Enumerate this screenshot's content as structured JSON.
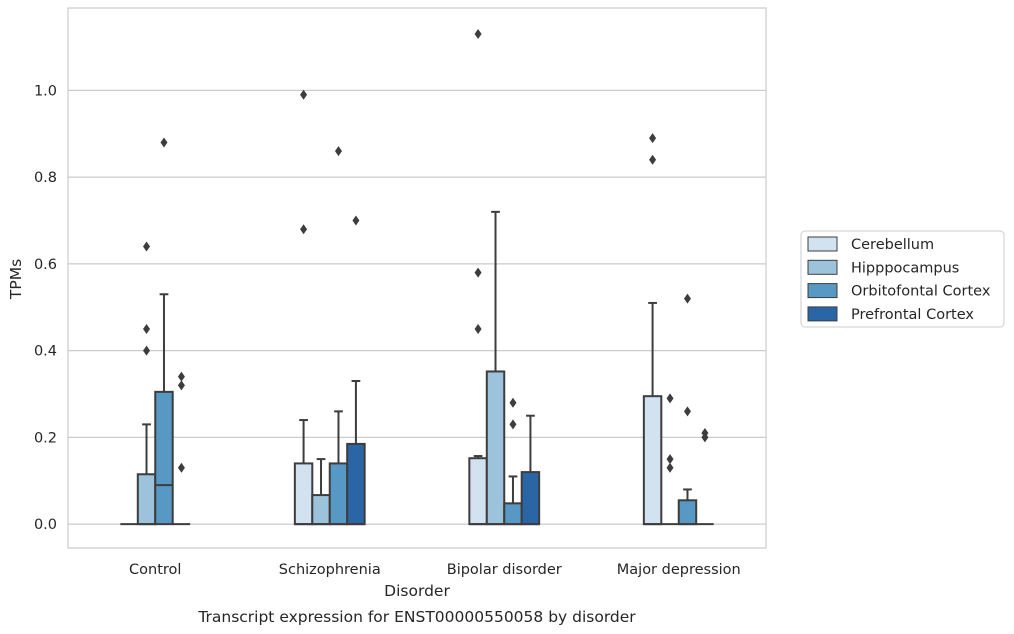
{
  "caption": "Transcript expression for ENST00000550058 by disorder",
  "chart_data": {
    "type": "boxplot",
    "xlabel": "Disorder",
    "ylabel": "TPMs",
    "ylim": [
      -0.055,
      1.19
    ],
    "yticks": [
      0.0,
      0.2,
      0.4,
      0.6,
      0.8,
      1.0
    ],
    "ytick_labels": [
      "0.0",
      "0.2",
      "0.4",
      "0.6",
      "0.8",
      "1.0"
    ],
    "grid": true,
    "legend_position": "right",
    "categories": [
      "Control",
      "Schizophrenia",
      "Bipolar disorder",
      "Major depression"
    ],
    "series": [
      {
        "name": "Cerebellum",
        "color": "#d3e2f0",
        "boxes": [
          {
            "q1": 0,
            "median": 0,
            "q3": 0,
            "whislo": 0,
            "whishi": 0,
            "fliers": []
          },
          {
            "q1": 0,
            "median": 0,
            "q3": 0.14,
            "whislo": 0,
            "whishi": 0.24,
            "fliers": [
              0.68,
              0.99
            ]
          },
          {
            "q1": 0,
            "median": 0,
            "q3": 0.152,
            "whislo": 0,
            "whishi": 0.157,
            "fliers": [
              0.45,
              0.58,
              1.13
            ]
          },
          {
            "q1": 0,
            "median": 0,
            "q3": 0.295,
            "whislo": 0,
            "whishi": 0.51,
            "fliers": [
              0.84,
              0.89
            ]
          }
        ]
      },
      {
        "name": "Hipppocampus",
        "color": "#9cc3db",
        "boxes": [
          {
            "q1": 0,
            "median": 0,
            "q3": 0.115,
            "whislo": 0,
            "whishi": 0.23,
            "fliers": [
              0.4,
              0.45,
              0.64
            ]
          },
          {
            "q1": 0,
            "median": 0,
            "q3": 0.067,
            "whislo": 0,
            "whishi": 0.15,
            "fliers": []
          },
          {
            "q1": 0,
            "median": 0,
            "q3": 0.352,
            "whislo": 0,
            "whishi": 0.72,
            "fliers": []
          },
          {
            "q1": 0,
            "median": 0,
            "q3": 0,
            "whislo": 0,
            "whishi": 0,
            "fliers": [
              0.13,
              0.15,
              0.29
            ]
          }
        ]
      },
      {
        "name": "Orbitofontal Cortex",
        "color": "#5898c5",
        "boxes": [
          {
            "q1": 0,
            "median": 0.09,
            "q3": 0.305,
            "whislo": 0,
            "whishi": 0.53,
            "fliers": [
              0.88
            ]
          },
          {
            "q1": 0,
            "median": 0,
            "q3": 0.14,
            "whislo": 0,
            "whishi": 0.26,
            "fliers": [
              0.86
            ]
          },
          {
            "q1": 0,
            "median": 0,
            "q3": 0.048,
            "whislo": 0,
            "whishi": 0.11,
            "fliers": [
              0.23,
              0.28
            ]
          },
          {
            "q1": 0,
            "median": 0,
            "q3": 0.055,
            "whislo": 0,
            "whishi": 0.08,
            "fliers": [
              0.26,
              0.52
            ]
          }
        ]
      },
      {
        "name": "Prefrontal Cortex",
        "color": "#2a66a6",
        "boxes": [
          {
            "q1": 0,
            "median": 0,
            "q3": 0,
            "whislo": 0,
            "whishi": 0,
            "fliers": [
              0.13,
              0.32,
              0.34
            ]
          },
          {
            "q1": 0,
            "median": 0,
            "q3": 0.185,
            "whislo": 0,
            "whishi": 0.33,
            "fliers": [
              0.7
            ]
          },
          {
            "q1": 0,
            "median": 0,
            "q3": 0.12,
            "whislo": 0,
            "whishi": 0.25,
            "fliers": []
          },
          {
            "q1": 0,
            "median": 0,
            "q3": 0,
            "whislo": 0,
            "whishi": 0,
            "fliers": [
              0.2,
              0.21
            ]
          }
        ]
      }
    ]
  }
}
